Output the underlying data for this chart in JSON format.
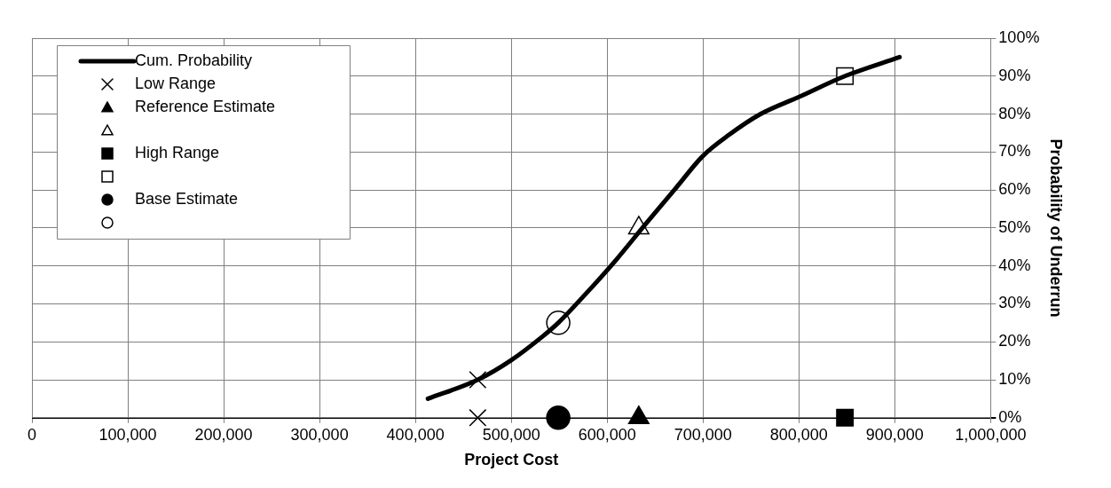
{
  "chart_data": {
    "type": "scatter",
    "xlabel": "Project Cost",
    "ylabel": "Probability of Underrun",
    "xlim": [
      0,
      1000000
    ],
    "xticks": [
      0,
      {
        "value": 100000,
        "label": "100,000"
      },
      {
        "value": 200000,
        "label": "200,000"
      },
      {
        "value": 300000,
        "label": "300,000"
      },
      {
        "value": 400000,
        "label": "400,000"
      },
      {
        "value": 500000,
        "label": "500,000"
      },
      {
        "value": 600000,
        "label": "600,000"
      },
      {
        "value": 700000,
        "label": "700,000"
      },
      {
        "value": 800000,
        "label": "800,000"
      },
      {
        "value": 900000,
        "label": "900,000"
      },
      {
        "value": 1000000,
        "label": "1,000,000"
      }
    ],
    "ylim": [
      0,
      100
    ],
    "yticks": [
      {
        "value": 0,
        "label": "0%"
      },
      {
        "value": 10,
        "label": "10%"
      },
      {
        "value": 20,
        "label": "20%"
      },
      {
        "value": 30,
        "label": "30%"
      },
      {
        "value": 40,
        "label": "40%"
      },
      {
        "value": 50,
        "label": "50%"
      },
      {
        "value": 60,
        "label": "60%"
      },
      {
        "value": 70,
        "label": "70%"
      },
      {
        "value": 80,
        "label": "80%"
      },
      {
        "value": 90,
        "label": "90%"
      },
      {
        "value": 100,
        "label": "100%"
      }
    ],
    "grid": true,
    "legend": "top left",
    "series": [
      {
        "name": "Cum. Probability",
        "type": "line",
        "marker": "none",
        "color": "#000000",
        "x": [
          413000,
          465000,
          499000,
          533000,
          549000,
          579000,
          609000,
          640000,
          670000,
          700000,
          727000,
          760000,
          800000,
          848000,
          905000
        ],
        "values": [
          5,
          10,
          15,
          21.5,
          25,
          33,
          41.5,
          51,
          60,
          69,
          74.5,
          80,
          84.5,
          90,
          95
        ]
      },
      {
        "name": "Low Range",
        "marker": "cross",
        "color": "#000000",
        "x": [
          465000,
          465000
        ],
        "values": [
          0,
          10
        ]
      },
      {
        "name": "Reference Estimate",
        "marker": "triangle",
        "color": "#000000",
        "x": [
          633000
        ],
        "values": [
          0
        ]
      },
      {
        "marker": "triangle",
        "color": "#ffffff",
        "x": [
          633000
        ],
        "values": [
          50
        ]
      },
      {
        "name": "High Range",
        "marker": "square",
        "color": "#000000",
        "x": [
          848000
        ],
        "values": [
          0
        ]
      },
      {
        "marker": "square",
        "color": "#ffffff",
        "x": [
          848000
        ],
        "values": [
          90
        ]
      },
      {
        "name": "Base Estimate",
        "marker": "circle",
        "color": "#000000",
        "x": [
          549000
        ],
        "values": [
          0
        ]
      },
      {
        "marker": "circle",
        "color": "#ffffff",
        "x": [
          549000
        ],
        "values": [
          25
        ]
      }
    ]
  }
}
